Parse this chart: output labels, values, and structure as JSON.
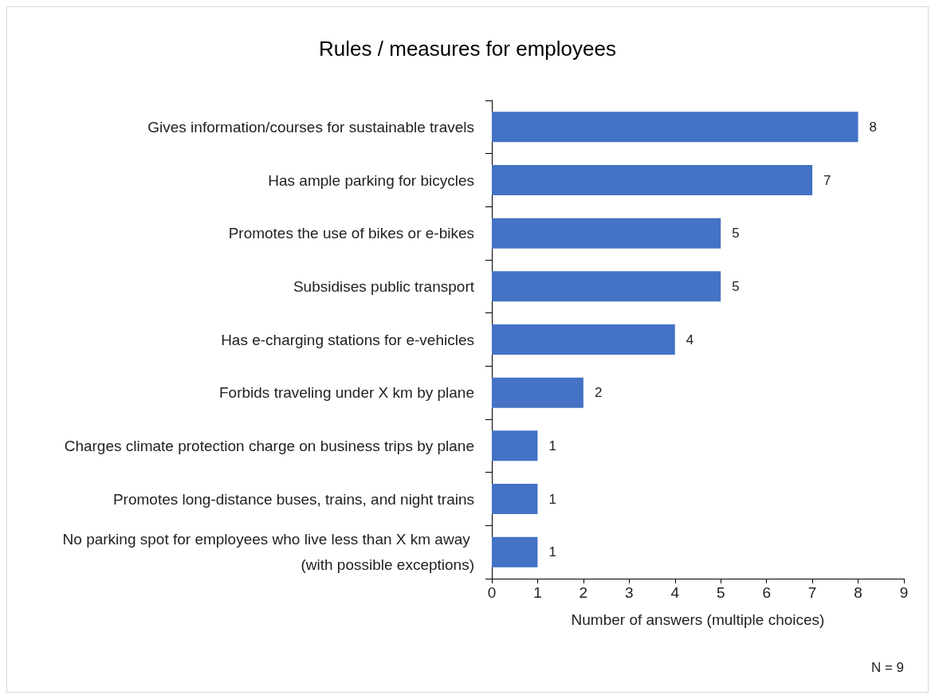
{
  "chart_data": {
    "type": "bar",
    "orientation": "horizontal",
    "title": "Rules / measures for employees",
    "xlabel": "Number of answers (multiple choices)",
    "categories": [
      "Gives information/courses for sustainable travels",
      "Has ample parking for bicycles",
      "Promotes the use of bikes or e-bikes",
      "Subsidises public transport",
      "Has e-charging stations for e-vehicles",
      "Forbids traveling under X km by plane",
      "Charges climate protection charge on business trips by plane",
      "Promotes long-distance buses, trains, and night trains",
      "No parking spot for employees who live less than X km away (with possible exceptions)"
    ],
    "values": [
      8,
      7,
      5,
      5,
      4,
      2,
      1,
      1,
      1
    ],
    "color": "#4472c4",
    "data_labels": true,
    "xlim": [
      0,
      9
    ],
    "xticks": [
      0,
      1,
      2,
      3,
      4,
      5,
      6,
      7,
      8,
      9
    ],
    "grid": false,
    "annotations": [
      "N = 9"
    ]
  }
}
